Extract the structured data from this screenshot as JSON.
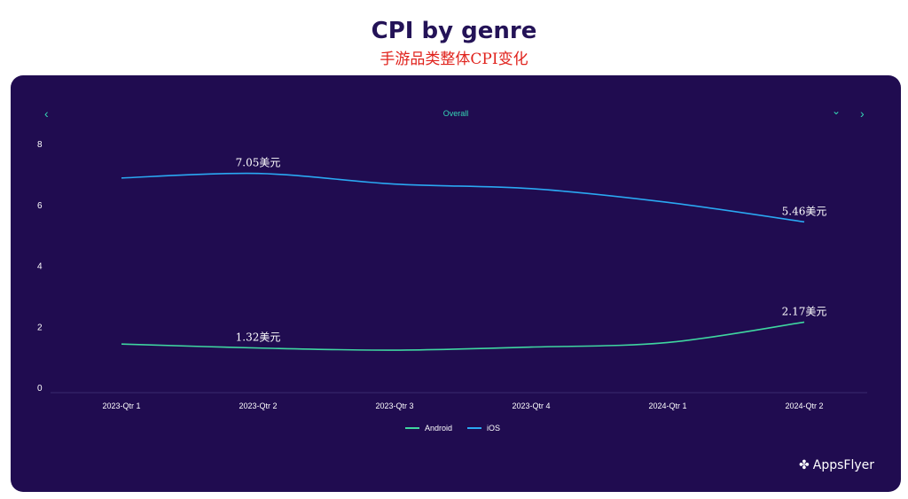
{
  "header": {
    "title": "CPI by genre",
    "subtitle": "手游品类整体CPI变化"
  },
  "controls": {
    "selected": "Overall",
    "prev_icon": "‹",
    "dropdown_icon": "⌄",
    "next_icon": "›"
  },
  "brand": {
    "name": "AppsFlyer"
  },
  "colors": {
    "android": "#3fd6a0",
    "ios": "#2aa8f2",
    "background": "#200c50"
  },
  "chart_data": {
    "type": "line",
    "categories": [
      "2023-Qtr 1",
      "2023-Qtr 2",
      "2023-Qtr 3",
      "2023-Qtr 4",
      "2024-Qtr 1",
      "2024-Qtr 2"
    ],
    "ylim": [
      0,
      8
    ],
    "yticks": [
      "0",
      "2",
      "4",
      "6",
      "8"
    ],
    "legend_position": "bottom",
    "series": [
      {
        "name": "Android",
        "color": "#3fd6a0",
        "values": [
          1.45,
          1.32,
          1.25,
          1.35,
          1.5,
          2.17
        ]
      },
      {
        "name": "iOS",
        "color": "#2aa8f2",
        "values": [
          6.9,
          7.05,
          6.7,
          6.55,
          6.1,
          5.46
        ]
      }
    ],
    "annotations": [
      {
        "series": 1,
        "index": 1,
        "text": "7.05美元"
      },
      {
        "series": 1,
        "index": 5,
        "text": "5.46美元"
      },
      {
        "series": 0,
        "index": 1,
        "text": "1.32美元"
      },
      {
        "series": 0,
        "index": 5,
        "text": "2.17美元"
      }
    ]
  }
}
